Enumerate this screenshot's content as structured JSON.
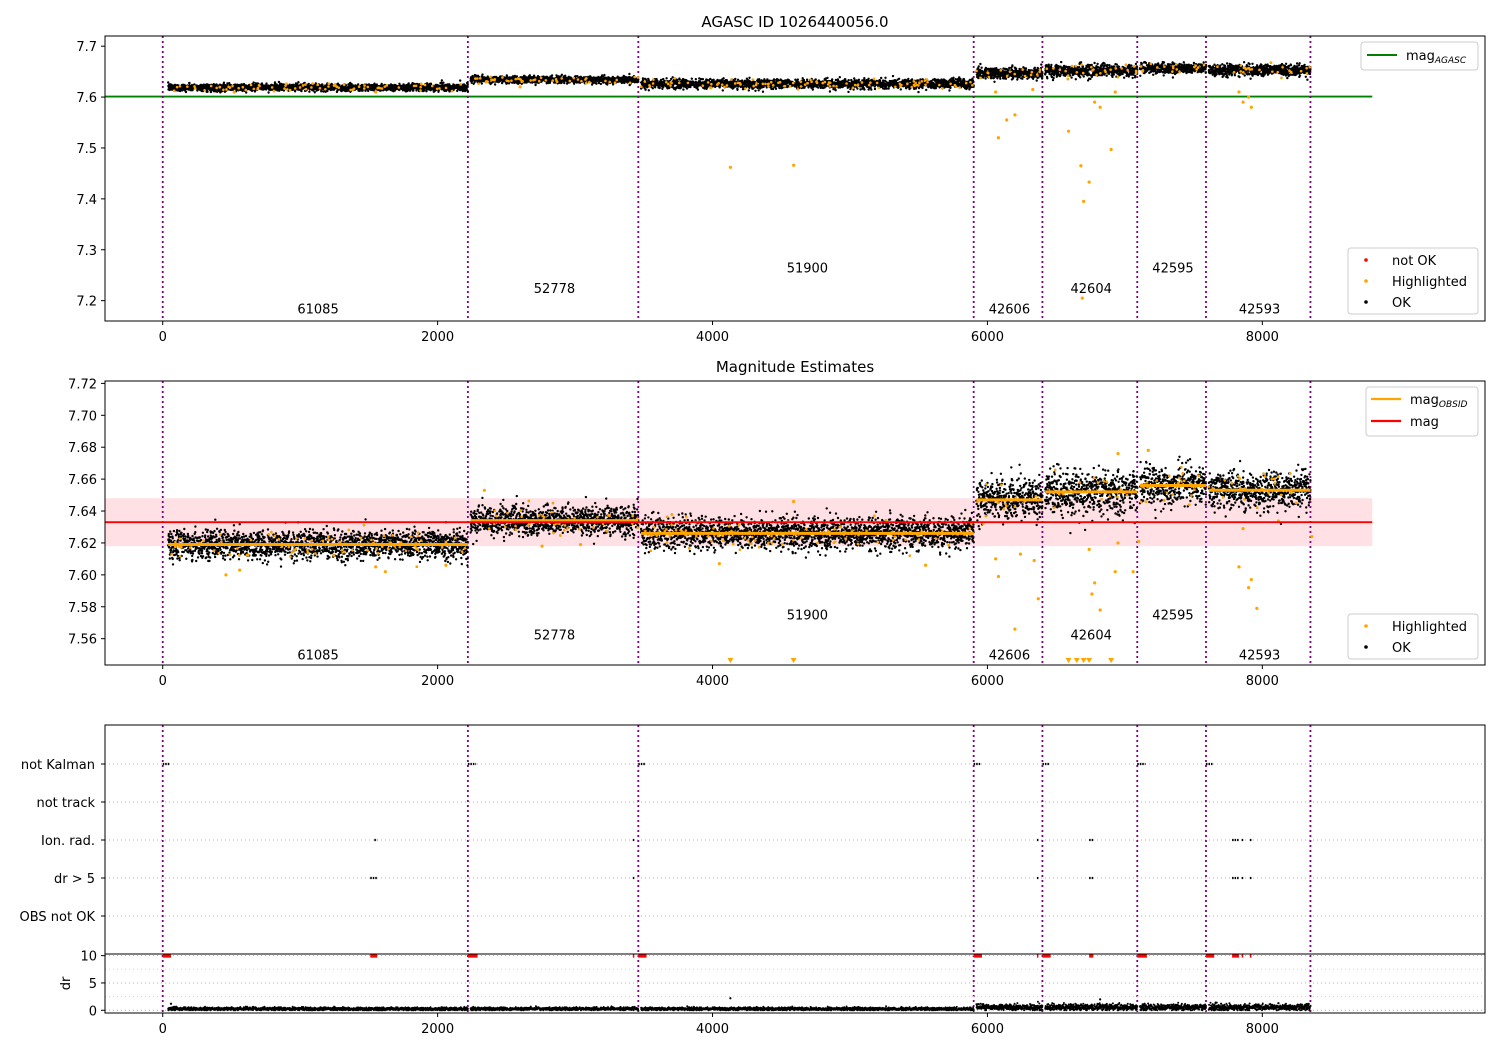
{
  "chart_data": [
    {
      "type": "scatter",
      "title": "AGASC ID 1026440056.0",
      "xlim": [
        -420,
        9620
      ],
      "ylim": [
        7.16,
        7.72
      ],
      "x_ticks": [
        0,
        2000,
        4000,
        6000,
        8000
      ],
      "y_ticks": [
        7.2,
        7.3,
        7.4,
        7.5,
        7.6,
        7.7
      ],
      "grid": false,
      "legend_upper": {
        "placement": "top-right",
        "entries": [
          {
            "label": "mag",
            "sub": "AGASC",
            "color": "#008000"
          }
        ]
      },
      "legend_lower": {
        "placement": "bottom-right",
        "entries": [
          {
            "label": "not OK",
            "color": "#ff0000"
          },
          {
            "label": "Highlighted",
            "color": "#ffa500"
          },
          {
            "label": "OK",
            "color": "#000000"
          }
        ]
      },
      "mag_agasc": {
        "value": 7.601,
        "x_range": [
          -420,
          8800
        ]
      },
      "obsid_bounds": [
        0,
        2220,
        3460,
        5900,
        6400,
        7090,
        7590,
        8350
      ],
      "segments": [
        {
          "obsid": "61085",
          "x0": 40,
          "x1": 2220,
          "mean": 7.619,
          "sd": 0.0035,
          "label_y": 7.185
        },
        {
          "obsid": "52778",
          "x0": 2240,
          "x1": 3460,
          "mean": 7.634,
          "sd": 0.0035,
          "label_y": 7.225
        },
        {
          "obsid": "51900",
          "x0": 3480,
          "x1": 5900,
          "mean": 7.626,
          "sd": 0.0045,
          "label_y": 7.265
        },
        {
          "obsid": "42606",
          "x0": 5920,
          "x1": 6400,
          "mean": 7.647,
          "sd": 0.0055,
          "label_y": 7.185
        },
        {
          "obsid": "42604",
          "x0": 6420,
          "x1": 7090,
          "mean": 7.652,
          "sd": 0.006,
          "label_y": 7.225
        },
        {
          "obsid": "42595",
          "x0": 7110,
          "x1": 7590,
          "mean": 7.656,
          "sd": 0.0055,
          "label_y": 7.265
        },
        {
          "obsid": "42593",
          "x0": 7610,
          "x1": 8350,
          "mean": 7.653,
          "sd": 0.0055,
          "label_y": 7.185
        }
      ],
      "highlighted_outliers": [
        [
          4130,
          7.462
        ],
        [
          4590,
          7.466
        ],
        [
          6080,
          7.52
        ],
        [
          6140,
          7.555
        ],
        [
          6200,
          7.565
        ],
        [
          6330,
          7.615
        ],
        [
          6590,
          7.533
        ],
        [
          6680,
          7.465
        ],
        [
          6740,
          7.433
        ],
        [
          6700,
          7.395
        ],
        [
          6690,
          7.205
        ],
        [
          6900,
          7.497
        ],
        [
          6780,
          7.59
        ],
        [
          6820,
          7.58
        ],
        [
          6930,
          7.61
        ],
        [
          7830,
          7.61
        ],
        [
          7860,
          7.59
        ],
        [
          7920,
          7.58
        ],
        [
          6060,
          7.61
        ],
        [
          7900,
          7.6
        ],
        [
          2600,
          7.62
        ],
        [
          520,
          7.61
        ],
        [
          1550,
          7.61
        ]
      ]
    },
    {
      "type": "scatter",
      "title": "Magnitude Estimates",
      "xlim": [
        -420,
        9620
      ],
      "ylim": [
        7.5435,
        7.7215
      ],
      "x_ticks": [
        0,
        2000,
        4000,
        6000,
        8000
      ],
      "y_ticks": [
        7.56,
        7.58,
        7.6,
        7.62,
        7.64,
        7.66,
        7.68,
        7.7,
        7.72
      ],
      "grid": false,
      "legend_upper": {
        "placement": "top-right",
        "entries": [
          {
            "label": "mag",
            "sub": "OBSID",
            "color": "#ffa500"
          },
          {
            "label": "mag",
            "sub": "",
            "color": "#ff0000"
          }
        ]
      },
      "legend_lower": {
        "placement": "bottom-right",
        "entries": [
          {
            "label": "Highlighted",
            "color": "#ffa500"
          },
          {
            "label": "OK",
            "color": "#000000"
          }
        ]
      },
      "mag": {
        "value": 7.633,
        "band": [
          7.618,
          7.648
        ],
        "x_range": [
          -420,
          8800
        ]
      },
      "obsid_bounds": [
        0,
        2220,
        3460,
        5900,
        6400,
        7090,
        7590,
        8350
      ],
      "segments": [
        {
          "obsid": "61085",
          "x0": 40,
          "x1": 2220,
          "mean": 7.619,
          "sd": 0.0045,
          "label_y": 7.55
        },
        {
          "obsid": "52778",
          "x0": 2240,
          "x1": 3460,
          "mean": 7.634,
          "sd": 0.0045,
          "label_y": 7.5625
        },
        {
          "obsid": "51900",
          "x0": 3480,
          "x1": 5900,
          "mean": 7.626,
          "sd": 0.005,
          "label_y": 7.575
        },
        {
          "obsid": "42606",
          "x0": 5920,
          "x1": 6400,
          "mean": 7.647,
          "sd": 0.0065,
          "label_y": 7.55
        },
        {
          "obsid": "42604",
          "x0": 6420,
          "x1": 7090,
          "mean": 7.652,
          "sd": 0.0065,
          "label_y": 7.5625
        },
        {
          "obsid": "42595",
          "x0": 7110,
          "x1": 7590,
          "mean": 7.656,
          "sd": 0.006,
          "label_y": 7.575
        },
        {
          "obsid": "42593",
          "x0": 7610,
          "x1": 8350,
          "mean": 7.653,
          "sd": 0.006,
          "label_y": 7.55
        }
      ],
      "highlighted_outliers": [
        [
          460,
          7.6
        ],
        [
          560,
          7.603
        ],
        [
          1550,
          7.605
        ],
        [
          1620,
          7.602
        ],
        [
          2060,
          7.606
        ],
        [
          2340,
          7.653
        ],
        [
          2760,
          7.618
        ],
        [
          3040,
          7.619
        ],
        [
          4050,
          7.607
        ],
        [
          4590,
          7.646
        ],
        [
          5550,
          7.606
        ],
        [
          6080,
          7.599
        ],
        [
          6060,
          7.61
        ],
        [
          6200,
          7.566
        ],
        [
          6240,
          7.613
        ],
        [
          6340,
          7.609
        ],
        [
          6370,
          7.585
        ],
        [
          6740,
          7.616
        ],
        [
          6780,
          7.595
        ],
        [
          6760,
          7.588
        ],
        [
          6820,
          7.578
        ],
        [
          6930,
          7.602
        ],
        [
          6950,
          7.62
        ],
        [
          7060,
          7.602
        ],
        [
          7100,
          7.621
        ],
        [
          7830,
          7.605
        ],
        [
          7860,
          7.629
        ],
        [
          7900,
          7.592
        ],
        [
          7920,
          7.597
        ],
        [
          7960,
          7.579
        ],
        [
          8360,
          7.624
        ],
        [
          7170,
          7.678
        ],
        [
          6950,
          7.676
        ]
      ],
      "below_axis_markers": [
        4130,
        4590,
        6590,
        6650,
        6700,
        6740,
        6900
      ]
    },
    {
      "type": "scatter",
      "xlim": [
        -420,
        9620
      ],
      "categories": [
        "not Kalman",
        "not track",
        "Ion. rad.",
        "dr > 5",
        "OBS not OK"
      ],
      "grid": true,
      "obsid_bounds": [
        0,
        2220,
        3460,
        5900,
        6400,
        7090,
        7590,
        8350
      ],
      "flags": {
        "not Kalman": [
          [
            0,
            50
          ],
          [
            2220,
            2280
          ],
          [
            3460,
            3510
          ],
          [
            5900,
            5950
          ],
          [
            6400,
            6450
          ],
          [
            7090,
            7150
          ],
          [
            7590,
            7640
          ]
        ],
        "not track": [],
        "Ion. rad.": [
          [
            1540,
            1560
          ],
          [
            3420,
            3430
          ],
          [
            6360,
            6370
          ],
          [
            6740,
            6770
          ],
          [
            7780,
            7830
          ],
          [
            7850,
            7860
          ],
          [
            7910,
            7920
          ]
        ],
        "dr > 5": [
          [
            1510,
            1560
          ],
          [
            3420,
            3430
          ],
          [
            6360,
            6370
          ],
          [
            6740,
            6770
          ],
          [
            7780,
            7830
          ],
          [
            7850,
            7860
          ],
          [
            7910,
            7920
          ]
        ],
        "OBS not OK": []
      }
    },
    {
      "type": "scatter",
      "xlim": [
        -420,
        9620
      ],
      "ylim": [
        -0.5,
        10.3
      ],
      "ylabel": "dr",
      "x_ticks": [
        0,
        2000,
        4000,
        6000,
        8000
      ],
      "y_ticks": [
        0,
        5,
        10
      ],
      "grid": true,
      "segments": [
        [
          40,
          2220
        ],
        [
          2240,
          3460
        ],
        [
          3480,
          5900
        ],
        [
          5920,
          6400
        ],
        [
          6420,
          7090
        ],
        [
          7110,
          7590
        ],
        [
          7610,
          8350
        ]
      ],
      "baseline": [
        {
          "x0": 40,
          "x1": 5900,
          "mean": 0.25,
          "sd": 0.15
        },
        {
          "x0": 5920,
          "x1": 8350,
          "mean": 0.55,
          "sd": 0.3
        }
      ],
      "spikes": [
        [
          60,
          1.2
        ],
        [
          4130,
          2.2
        ],
        [
          6820,
          2.0
        ],
        [
          7660,
          1.4
        ],
        [
          7700,
          1.2
        ],
        [
          6900,
          0.9
        ]
      ],
      "capped_at_10": [
        [
          0,
          60
        ],
        [
          2220,
          2290
        ],
        [
          3460,
          3520
        ],
        [
          5900,
          5960
        ],
        [
          6400,
          6460
        ],
        [
          7090,
          7160
        ],
        [
          7590,
          7650
        ],
        [
          1510,
          1560
        ],
        [
          3420,
          3430
        ],
        [
          6360,
          6370
        ],
        [
          6740,
          6770
        ],
        [
          7780,
          7830
        ],
        [
          7850,
          7860
        ],
        [
          7910,
          7920
        ]
      ]
    }
  ]
}
